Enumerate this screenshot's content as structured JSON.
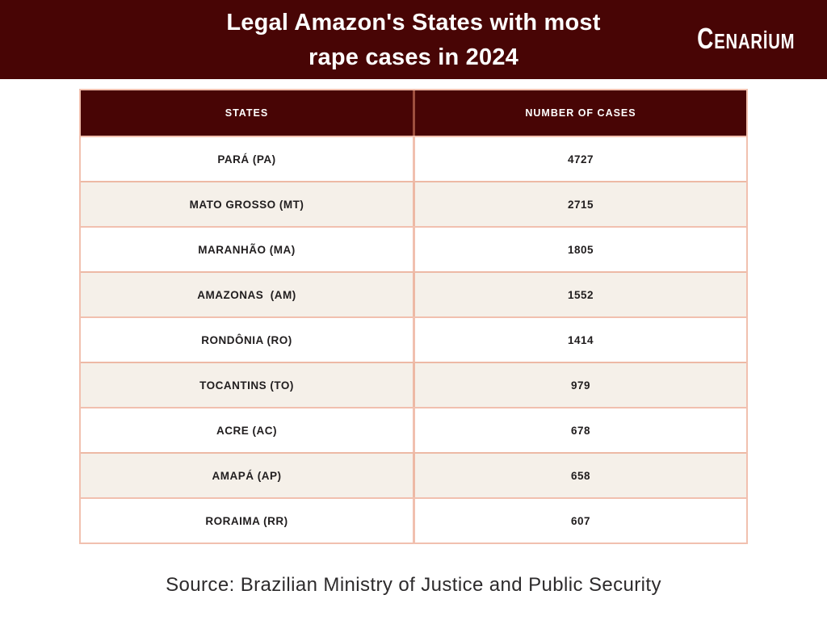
{
  "banner": {
    "title_line1": "Legal Amazon's States with most",
    "title_line2": "rape cases in 2024",
    "logo_first": "C",
    "logo_rest": "ENARİUM"
  },
  "table": {
    "headers": {
      "states": "STATES",
      "cases": "NUMBER OF CASES"
    },
    "rows": [
      {
        "state": "PARÁ (PA)",
        "cases": "4727"
      },
      {
        "state": "MATO GROSSO (MT)",
        "cases": "2715"
      },
      {
        "state": "MARANHÃO (MA)",
        "cases": "1805"
      },
      {
        "state": "AMAZONAS  (AM)",
        "cases": "1552"
      },
      {
        "state": "RONDÔNIA (RO)",
        "cases": "1414"
      },
      {
        "state": "TOCANTINS (TO)",
        "cases": "979"
      },
      {
        "state": "ACRE (AC)",
        "cases": "678"
      },
      {
        "state": "AMAPÁ (AP)",
        "cases": "658"
      },
      {
        "state": "RORAIMA (RR)",
        "cases": "607"
      }
    ]
  },
  "footer": {
    "source": "Source: Brazilian Ministry of Justice and Public Security"
  },
  "colors": {
    "banner_bg": "#480505",
    "header_row_bg": "#480505",
    "row_alt_bg": "#f5f0e9",
    "border": "rgba(230,140,110,0.55)",
    "title_text": "#ffffff",
    "body_text": "#201d1e",
    "footer_text": "#2d2b2c"
  },
  "chart_data": {
    "type": "table",
    "title": "Legal Amazon's States with most rape cases in 2024",
    "columns": [
      "STATES",
      "NUMBER OF CASES"
    ],
    "categories": [
      "PARÁ (PA)",
      "MATO GROSSO (MT)",
      "MARANHÃO (MA)",
      "AMAZONAS (AM)",
      "RONDÔNIA (RO)",
      "TOCANTINS (TO)",
      "ACRE (AC)",
      "AMAPÁ (AP)",
      "RORAIMA (RR)"
    ],
    "values": [
      4727,
      2715,
      1805,
      1552,
      1414,
      979,
      678,
      658,
      607
    ],
    "source": "Source: Brazilian Ministry of Justice and Public Security"
  }
}
